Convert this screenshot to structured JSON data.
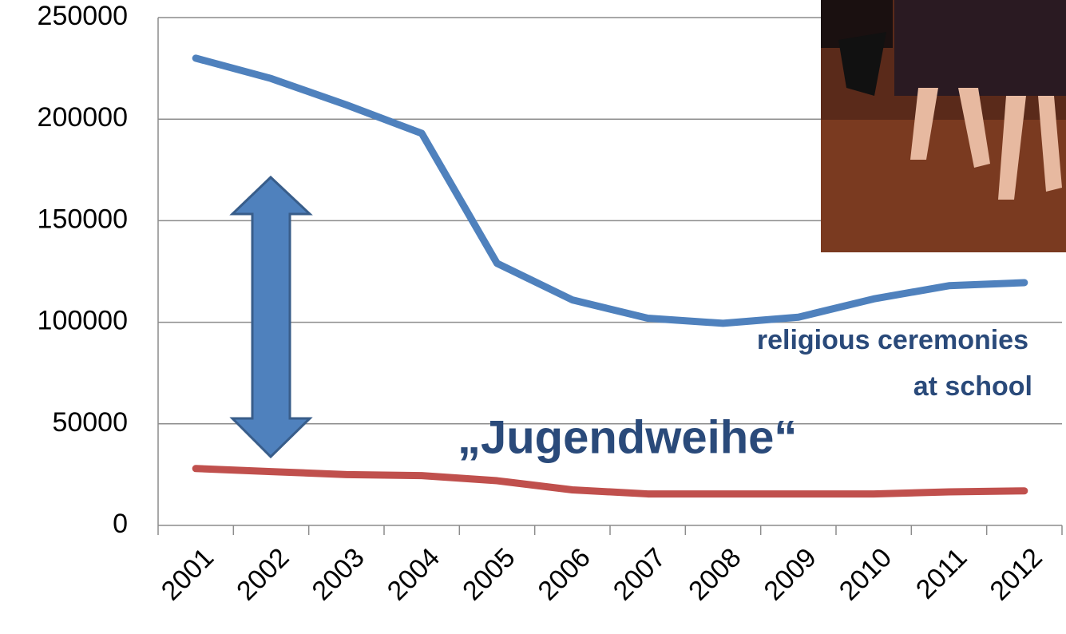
{
  "chart_data": {
    "type": "line",
    "categories": [
      "2001",
      "2002",
      "2003",
      "2004",
      "2005",
      "2006",
      "2007",
      "2008",
      "2009",
      "2010",
      "2011",
      "2012"
    ],
    "series": [
      {
        "color": "#4f81bd",
        "values": [
          230000,
          220000,
          207000,
          193000,
          129000,
          111000,
          102000,
          99500,
          102500,
          111500,
          118000,
          119500
        ]
      },
      {
        "color": "#c0504d",
        "values": [
          28000,
          26500,
          25000,
          24500,
          22000,
          17500,
          15500,
          15500,
          15500,
          15500,
          16500,
          17000
        ]
      }
    ],
    "annotations": [
      "religious ceremonies",
      "at school",
      "„Jugendweihe“"
    ],
    "ylim": [
      0,
      250000
    ],
    "yticks": [
      0,
      50000,
      100000,
      150000,
      200000,
      250000
    ],
    "grid": true
  }
}
